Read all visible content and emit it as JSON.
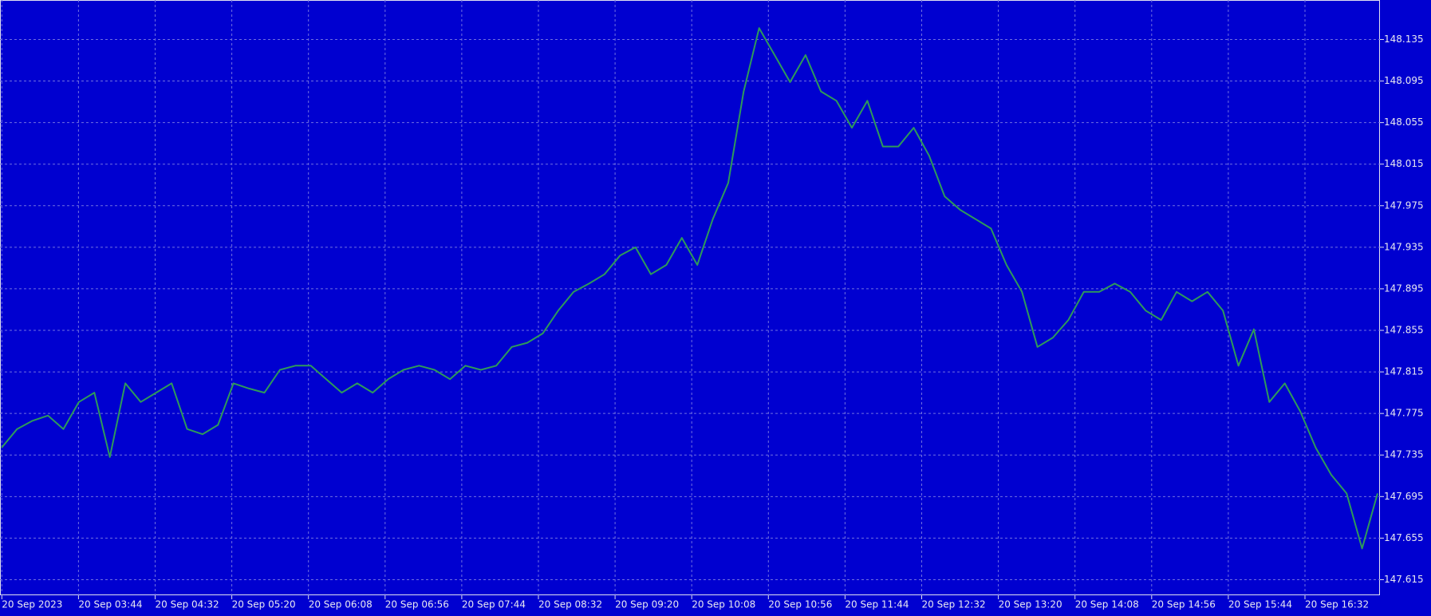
{
  "chart_data": {
    "type": "line",
    "x_labels": [
      "20 Sep 2023",
      "20 Sep 03:44",
      "20 Sep 04:32",
      "20 Sep 05:20",
      "20 Sep 06:08",
      "20 Sep 06:56",
      "20 Sep 07:44",
      "20 Sep 08:32",
      "20 Sep 09:20",
      "20 Sep 10:08",
      "20 Sep 10:56",
      "20 Sep 11:44",
      "20 Sep 12:32",
      "20 Sep 13:20",
      "20 Sep 14:08",
      "20 Sep 14:56",
      "20 Sep 15:44",
      "20 Sep 16:32"
    ],
    "series": [
      {
        "color": "#2e9a5a",
        "values": [
          147.742,
          147.76,
          147.768,
          147.773,
          147.76,
          147.786,
          147.795,
          147.733,
          147.804,
          147.786,
          147.795,
          147.804,
          147.76,
          147.755,
          147.764,
          147.804,
          147.799,
          147.795,
          147.817,
          147.821,
          147.821,
          147.808,
          147.795,
          147.804,
          147.795,
          147.808,
          147.817,
          147.821,
          147.817,
          147.808,
          147.821,
          147.817,
          147.821,
          147.839,
          147.843,
          147.852,
          147.874,
          147.892,
          147.9,
          147.909,
          147.927,
          147.935,
          147.909,
          147.918,
          147.944,
          147.918,
          147.962,
          147.997,
          148.085,
          148.146,
          148.12,
          148.094,
          148.12,
          148.085,
          148.076,
          148.05,
          148.076,
          148.032,
          148.032,
          148.05,
          148.023,
          147.984,
          147.971,
          147.962,
          147.953,
          147.918,
          147.892,
          147.839,
          147.848,
          147.865,
          147.892,
          147.892,
          147.9,
          147.892,
          147.874,
          147.865,
          147.892,
          147.883,
          147.892,
          147.874,
          147.821,
          147.856,
          147.786,
          147.804,
          147.777,
          147.742,
          147.716,
          147.698,
          147.645,
          147.698
        ]
      }
    ],
    "ylim": [
      147.6,
      148.173
    ],
    "yticks": [
      147.615,
      147.655,
      147.695,
      147.735,
      147.775,
      147.815,
      147.855,
      147.895,
      147.935,
      147.975,
      148.015,
      148.055,
      148.095,
      148.135
    ],
    "grid": true
  }
}
